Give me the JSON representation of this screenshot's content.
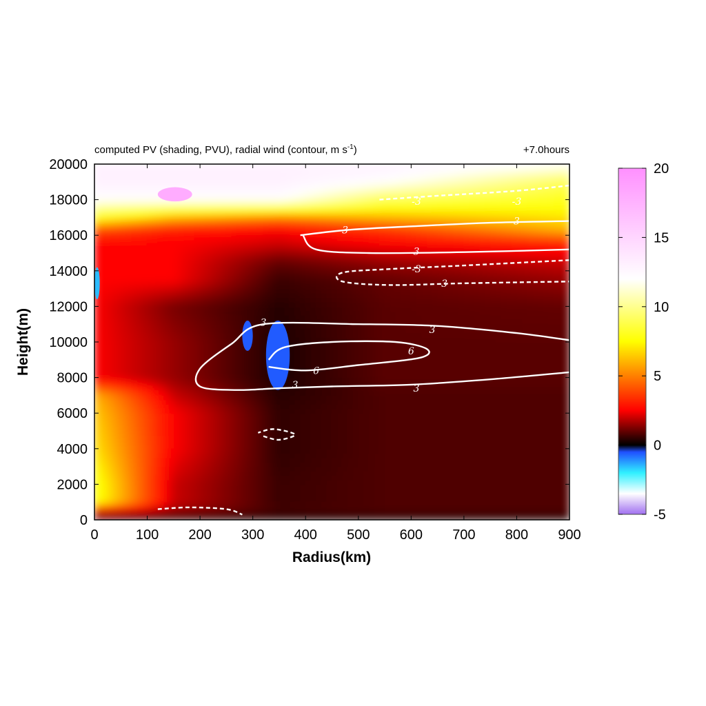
{
  "chart_data": {
    "type": "heatmap",
    "title": "computed PV (shading, PVU), radial wind (contour, m s",
    "title_superscript": "-1",
    "title_close": ")",
    "annotation": "+7.0hours",
    "xlabel": "Radius(km)",
    "ylabel": "Height(m)",
    "xlim": [
      0,
      900
    ],
    "ylim": [
      0,
      20000
    ],
    "x_ticks": [
      0,
      100,
      200,
      300,
      400,
      500,
      600,
      700,
      800,
      900
    ],
    "y_ticks": [
      0,
      2000,
      4000,
      6000,
      8000,
      10000,
      12000,
      14000,
      16000,
      18000,
      20000
    ],
    "colorbar": {
      "range": [
        -5,
        20
      ],
      "ticks": [
        -5,
        0,
        5,
        10,
        15,
        20
      ],
      "stops": [
        {
          "value": -5,
          "color": "#a070f0"
        },
        {
          "value": -3.5,
          "color": "#ffffff"
        },
        {
          "value": -2,
          "color": "#30f0ff"
        },
        {
          "value": -0.5,
          "color": "#2050ff"
        },
        {
          "value": 0,
          "color": "#000000"
        },
        {
          "value": 0.6,
          "color": "#3a0000"
        },
        {
          "value": 2.5,
          "color": "#ff0000"
        },
        {
          "value": 7.5,
          "color": "#ffff00"
        },
        {
          "value": 12,
          "color": "#ffffff"
        },
        {
          "value": 20,
          "color": "#ff90ff"
        }
      ]
    },
    "pv_shading": {
      "description_units": "PVU",
      "heights_m": [
        0,
        500,
        1000,
        2000,
        4000,
        6000,
        7000,
        8000,
        10000,
        12000,
        13500,
        14500,
        15500,
        16300,
        17000,
        18000,
        19000,
        20000
      ],
      "profiles": [
        {
          "radius_km": 0,
          "pv": [
            0.2,
            2.5,
            8.0,
            8.0,
            7.0,
            6.5,
            6.0,
            2.5,
            2.5,
            2.5,
            2.5,
            2.5,
            2.5,
            4.0,
            8.0,
            12.0,
            13.0,
            13.0
          ]
        },
        {
          "radius_km": 150,
          "pv": [
            0.2,
            1.5,
            2.0,
            2.0,
            2.5,
            2.5,
            2.0,
            1.5,
            1.5,
            1.2,
            2.5,
            2.5,
            2.5,
            3.0,
            6.0,
            12.0,
            13.0,
            13.0
          ]
        },
        {
          "radius_km": 350,
          "pv": [
            0.2,
            0.7,
            0.6,
            0.6,
            0.5,
            0.5,
            0.4,
            0.3,
            0.3,
            0.4,
            0.6,
            1.0,
            2.0,
            2.5,
            5.0,
            12.0,
            13.0,
            13.0
          ]
        },
        {
          "radius_km": 550,
          "pv": [
            0.2,
            0.8,
            0.8,
            0.8,
            0.8,
            0.8,
            0.8,
            0.9,
            0.9,
            0.9,
            1.0,
            1.5,
            2.5,
            3.5,
            6.0,
            9.0,
            12.0,
            13.0
          ]
        },
        {
          "radius_km": 900,
          "pv": [
            0.2,
            0.8,
            0.8,
            0.8,
            0.8,
            0.8,
            0.8,
            0.9,
            0.9,
            1.0,
            1.5,
            2.0,
            3.0,
            6.0,
            7.0,
            8.0,
            9.0,
            12.0
          ]
        }
      ],
      "features": [
        {
          "kind": "negative-patch",
          "x": [
            0,
            10
          ],
          "y": [
            12400,
            14200
          ],
          "pv": -1.5
        },
        {
          "kind": "negative-patch",
          "x": [
            325,
            370
          ],
          "y": [
            7300,
            11200
          ],
          "pv": -0.6
        },
        {
          "kind": "negative-patch",
          "x": [
            280,
            300
          ],
          "y": [
            9500,
            11200
          ],
          "pv": -0.6
        },
        {
          "kind": "high-patch",
          "x": [
            120,
            185
          ],
          "y": [
            17900,
            18700
          ],
          "pv": 18
        }
      ]
    },
    "contours": [
      {
        "label": "3",
        "style": "solid",
        "label_at": [
          [
            475,
            16300
          ],
          [
            800,
            16800
          ]
        ],
        "points": [
          [
            390,
            16000
          ],
          [
            480,
            16300
          ],
          [
            600,
            16500
          ],
          [
            750,
            16700
          ],
          [
            900,
            16800
          ]
        ]
      },
      {
        "label": "3",
        "style": "solid",
        "label_at": [
          [
            610,
            15100
          ]
        ],
        "points": [
          [
            395,
            16000
          ],
          [
            420,
            15200
          ],
          [
            520,
            15000
          ],
          [
            700,
            15050
          ],
          [
            900,
            15200
          ]
        ]
      },
      {
        "label": "-3",
        "style": "dashed",
        "label_at": [
          [
            610,
            14100
          ],
          [
            660,
            13300
          ]
        ],
        "points": [
          [
            900,
            14600
          ],
          [
            700,
            14300
          ],
          [
            560,
            14100
          ],
          [
            470,
            13900
          ],
          [
            470,
            13400
          ],
          [
            560,
            13200
          ],
          [
            700,
            13300
          ],
          [
            900,
            13400
          ]
        ]
      },
      {
        "label": "-3",
        "style": "dashed",
        "label_at": [
          [
            610,
            17900
          ],
          [
            800,
            17900
          ]
        ],
        "points": [
          [
            540,
            18000
          ],
          [
            640,
            18200
          ],
          [
            800,
            18500
          ],
          [
            900,
            18800
          ]
        ]
      },
      {
        "label": "3",
        "style": "solid",
        "label_at": [
          [
            320,
            11100
          ],
          [
            640,
            10700
          ],
          [
            380,
            7600
          ],
          [
            610,
            7400
          ]
        ],
        "points": [
          [
            900,
            10100
          ],
          [
            800,
            10500
          ],
          [
            650,
            10900
          ],
          [
            500,
            11000
          ],
          [
            320,
            11000
          ],
          [
            260,
            9900
          ],
          [
            200,
            8500
          ],
          [
            200,
            7500
          ],
          [
            270,
            7300
          ],
          [
            350,
            7400
          ],
          [
            450,
            7500
          ],
          [
            600,
            7600
          ],
          [
            750,
            7900
          ],
          [
            900,
            8300
          ]
        ]
      },
      {
        "label": "6",
        "style": "solid",
        "label_at": [
          [
            600,
            9500
          ],
          [
            420,
            8400
          ]
        ],
        "points": [
          [
            330,
            9000
          ],
          [
            360,
            9700
          ],
          [
            450,
            10000
          ],
          [
            570,
            10000
          ],
          [
            630,
            9600
          ],
          [
            615,
            9100
          ],
          [
            500,
            8700
          ],
          [
            400,
            8400
          ],
          [
            330,
            8600
          ]
        ]
      },
      {
        "label": "-3",
        "style": "dashed",
        "label_at": [],
        "points": [
          [
            320,
            4700
          ],
          [
            350,
            4500
          ],
          [
            380,
            4800
          ],
          [
            340,
            5100
          ],
          [
            310,
            4900
          ]
        ]
      },
      {
        "label": "-3",
        "style": "dashed",
        "label_at": [],
        "points": [
          [
            120,
            600
          ],
          [
            180,
            700
          ],
          [
            250,
            600
          ],
          [
            280,
            300
          ]
        ]
      }
    ]
  }
}
